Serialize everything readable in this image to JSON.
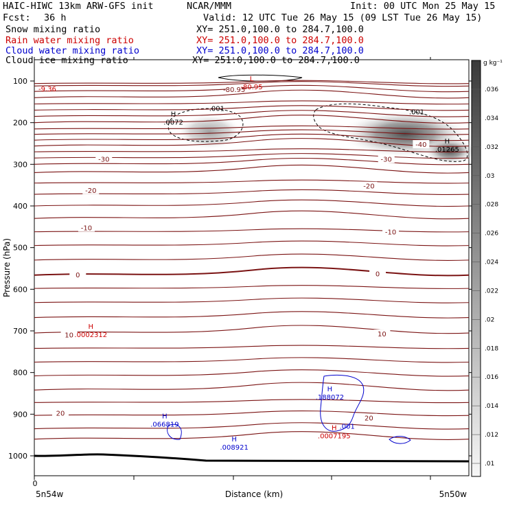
{
  "header": {
    "model": "HAIC-HIWC 13km ARW-GFS init",
    "org": "NCAR/MMM",
    "init": "Init: 00 UTC Mon 25 May 15",
    "fcst_label": "Fcst:",
    "fcst_value": "36 h",
    "valid": "Valid: 12 UTC Tue 26 May 15 (09 LST Tue 26 May 15)",
    "fields": [
      {
        "name": "Snow mixing ratio",
        "xy": "XY= 251.0,100.0 to 284.7,100.0",
        "color": "#000000"
      },
      {
        "name": "Rain water mixing ratio",
        "xy": "XY= 251.0,100.0 to 284.7,100.0",
        "color": "#cc0000"
      },
      {
        "name": "Cloud water mixing ratio",
        "xy": "XY= 251.0,100.0 to 284.7,100.0",
        "color": "#0000cc"
      },
      {
        "name": "Cloud ice mixing ratio",
        "xy": "XY= 251.0,100.0 to 284.7,100.0",
        "color": "#000000"
      }
    ]
  },
  "chart_data": {
    "type": "contour",
    "ylabel": "Pressure (hPa)",
    "xlabel": "Distance (km)",
    "x_start_label": "5n54w",
    "x_end_label": "5n50w",
    "x_tick_zero": "0",
    "y_ticks": [
      100,
      200,
      300,
      400,
      500,
      600,
      700,
      800,
      900,
      1000
    ],
    "colorbar_unit": "g kg⁻¹",
    "colorbar_levels": [
      ".01",
      ".012",
      ".014",
      ".016",
      ".018",
      ".02",
      ".022",
      ".024",
      ".026",
      ".028",
      ".03",
      ".032",
      ".034",
      ".036"
    ],
    "temperature_labels": [
      {
        "text": "-80.95",
        "x": 0.46,
        "p": 123
      },
      {
        "text": "-40",
        "x": 0.89,
        "p": 255
      },
      {
        "text": "-30",
        "x": 0.16,
        "p": 290
      },
      {
        "text": "-30",
        "x": 0.81,
        "p": 290
      },
      {
        "text": "-20",
        "x": 0.13,
        "p": 365
      },
      {
        "text": "-20",
        "x": 0.77,
        "p": 355
      },
      {
        "text": "-10",
        "x": 0.12,
        "p": 455
      },
      {
        "text": "-10",
        "x": 0.82,
        "p": 465
      },
      {
        "text": "0",
        "x": 0.1,
        "p": 568
      },
      {
        "text": "0",
        "x": 0.79,
        "p": 566
      },
      {
        "text": "10",
        "x": 0.08,
        "p": 712
      },
      {
        "text": "10",
        "x": 0.8,
        "p": 710
      },
      {
        "text": "20",
        "x": 0.06,
        "p": 900
      },
      {
        "text": "20",
        "x": 0.77,
        "p": 912
      }
    ],
    "extrema": [
      {
        "marker": "L",
        "value": "-80.95",
        "x": 0.5,
        "p": 110,
        "color": "#cc0000"
      },
      {
        "marker": "",
        "value": "-9.36",
        "x": 0.03,
        "p": 115,
        "color": "#cc0000"
      },
      {
        "marker": "H",
        "value": ".0072",
        "x": 0.32,
        "p": 195,
        "color": "#000000"
      },
      {
        "marker": "H",
        "value": ".01265",
        "x": 0.95,
        "p": 260,
        "color": "#000000"
      },
      {
        "marker": "H",
        "value": ".0002312",
        "x": 0.13,
        "p": 705,
        "color": "#cc0000"
      },
      {
        "marker": "H",
        "value": ".066819",
        "x": 0.3,
        "p": 920,
        "color": "#0000cc"
      },
      {
        "marker": "H",
        "value": ".008921",
        "x": 0.46,
        "p": 975,
        "color": "#0000cc"
      },
      {
        "marker": "H",
        "value": ".188072",
        "x": 0.68,
        "p": 855,
        "color": "#0000cc"
      },
      {
        "marker": "H",
        "value": ".0007195",
        "x": 0.69,
        "p": 948,
        "color": "#cc0000"
      }
    ],
    "contour_labels": [
      {
        "text": ".001",
        "x": 0.42,
        "p": 172,
        "color": "#000000"
      },
      {
        "text": ".001",
        "x": 0.88,
        "p": 180,
        "color": "#000000"
      },
      {
        "text": ".001",
        "x": 0.72,
        "p": 935,
        "color": "#0000cc"
      }
    ]
  }
}
